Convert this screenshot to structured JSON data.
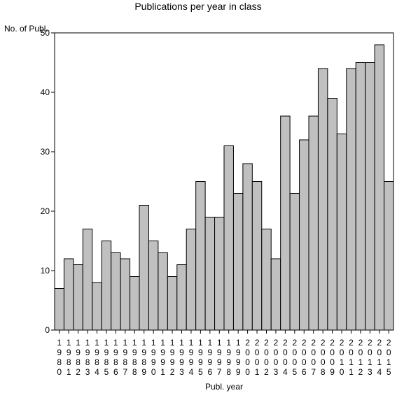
{
  "chart_data": {
    "type": "bar",
    "title": "Publications per year in class",
    "xlabel": "Publ. year",
    "ylabel": "No. of Publ.",
    "ylim": [
      0,
      50
    ],
    "yticks": [
      0,
      10,
      20,
      30,
      40,
      50
    ],
    "grid": false,
    "categories": [
      "1980",
      "1981",
      "1982",
      "1983",
      "1984",
      "1985",
      "1986",
      "1987",
      "1988",
      "1989",
      "1990",
      "1991",
      "1992",
      "1993",
      "1994",
      "1995",
      "1996",
      "1997",
      "1998",
      "1999",
      "2000",
      "2001",
      "2002",
      "2003",
      "2004",
      "2005",
      "2006",
      "2007",
      "2008",
      "2009",
      "2010",
      "2011",
      "2012",
      "2013",
      "2014",
      "2015"
    ],
    "values": [
      7,
      12,
      11,
      17,
      8,
      15,
      13,
      12,
      9,
      21,
      15,
      13,
      9,
      11,
      17,
      25,
      19,
      19,
      31,
      23,
      28,
      25,
      17,
      12,
      36,
      23,
      32,
      36,
      44,
      39,
      33,
      44,
      45,
      45,
      48,
      25
    ],
    "colors": {
      "bar_fill": "#c0c0c0",
      "bar_stroke": "#000000",
      "axis": "#000000"
    }
  }
}
